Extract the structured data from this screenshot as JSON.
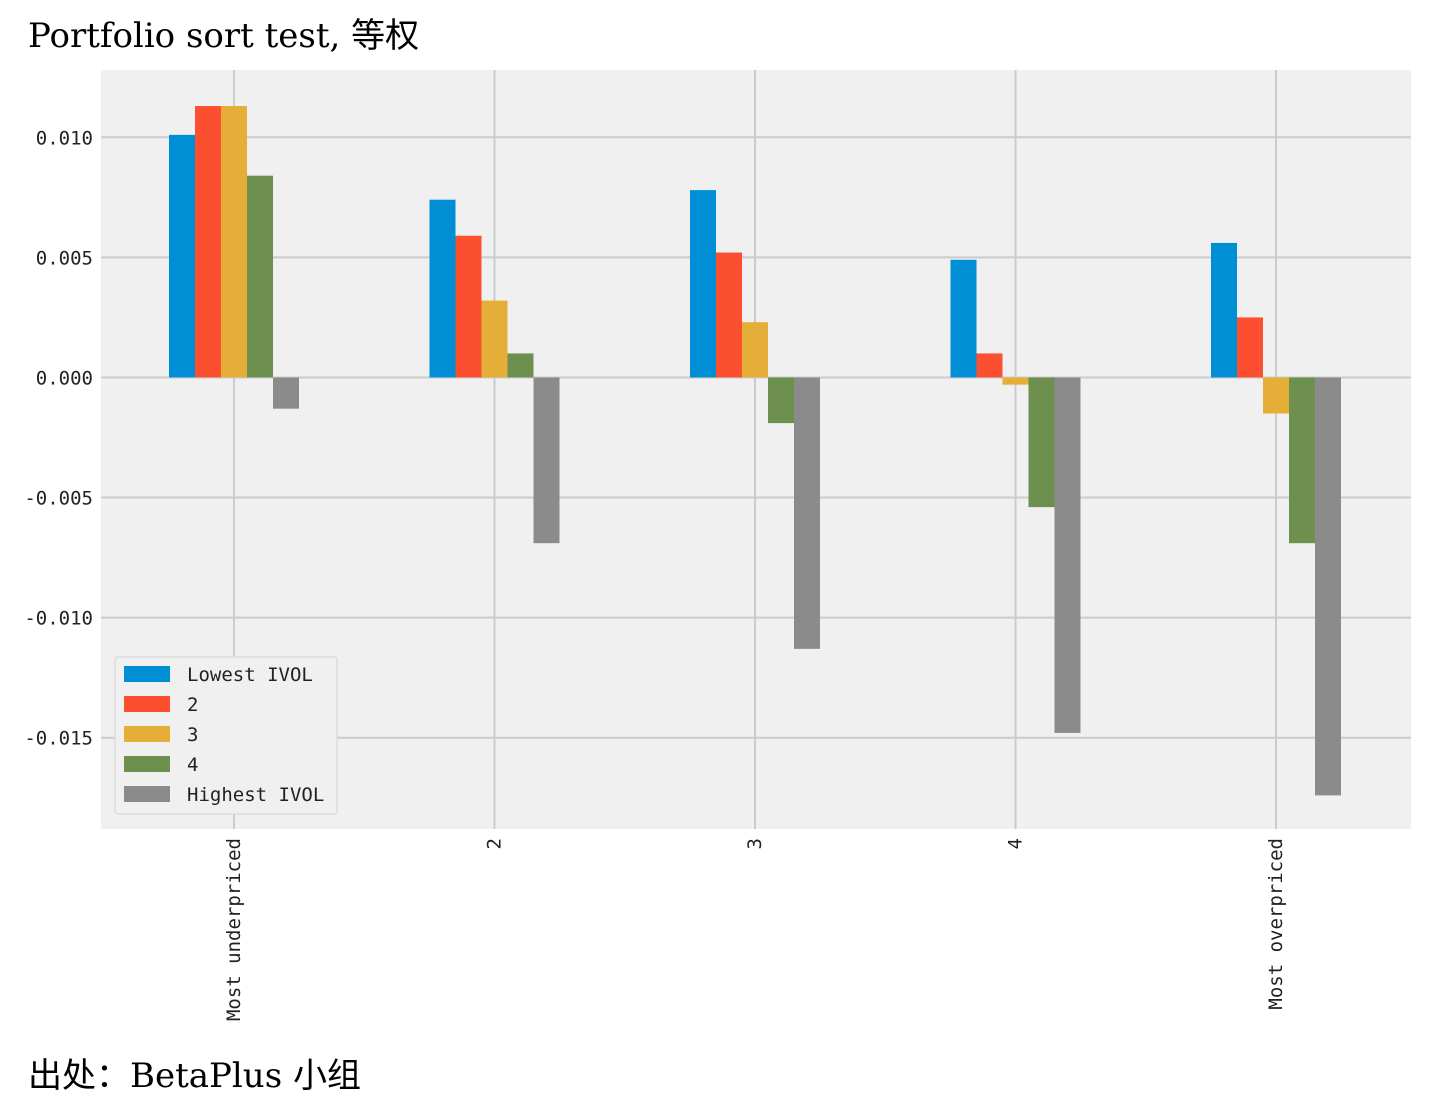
{
  "title": "Portfolio sort test, 等权",
  "source": "出处：BetaPlus 小组",
  "colors": {
    "background": "#f0f0f0",
    "grid": "#cbcbcb",
    "series": [
      "#008fd5",
      "#fc4f30",
      "#e5ae38",
      "#6d904f",
      "#8b8b8b"
    ]
  },
  "chart_data": {
    "type": "bar",
    "title": "",
    "xlabel": "",
    "ylabel": "",
    "categories": [
      "Most underpriced",
      "2",
      "3",
      "4",
      "Most overpriced"
    ],
    "ylim": [
      -0.0188,
      0.0128
    ],
    "yticks": [
      0.01,
      0.005,
      0.0,
      -0.005,
      -0.01,
      -0.015
    ],
    "ytick_labels": [
      "0.010",
      "0.005",
      "0.000",
      "-0.005",
      "-0.010",
      "-0.015"
    ],
    "grid": true,
    "legend_position": "lower-left",
    "series": [
      {
        "name": "Lowest IVOL",
        "values": [
          0.0101,
          0.0074,
          0.0078,
          0.0049,
          0.0056
        ]
      },
      {
        "name": "2",
        "values": [
          0.0113,
          0.0059,
          0.0052,
          0.001,
          0.0025
        ]
      },
      {
        "name": "3",
        "values": [
          0.0113,
          0.0032,
          0.0023,
          -0.0003,
          -0.0015
        ]
      },
      {
        "name": "4",
        "values": [
          0.0084,
          0.001,
          -0.0019,
          -0.0054,
          -0.0069
        ]
      },
      {
        "name": "Highest IVOL",
        "values": [
          -0.0013,
          -0.0069,
          -0.0113,
          -0.0148,
          -0.0174
        ]
      }
    ]
  }
}
